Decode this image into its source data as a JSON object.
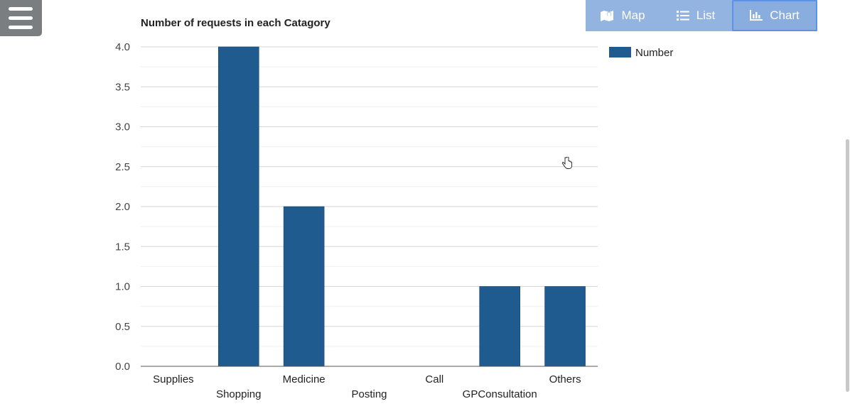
{
  "menu": {
    "icon": "hamburger-menu-icon"
  },
  "view_toggle": {
    "items": [
      {
        "label": "Map",
        "icon": "map-icon",
        "active": false
      },
      {
        "label": "List",
        "icon": "list-icon",
        "active": false
      },
      {
        "label": "Chart",
        "icon": "bar-chart-icon",
        "active": true
      }
    ]
  },
  "chart_data": {
    "type": "bar",
    "title": "Number of requests in each Catagory",
    "xlabel": "",
    "ylabel": "",
    "categories": [
      "Supplies",
      "Shopping",
      "Medicine",
      "Posting",
      "Call",
      "GPConsultation",
      "Others"
    ],
    "series": [
      {
        "name": "Number",
        "values": [
          0,
          4,
          2,
          0,
          0,
          1,
          1
        ],
        "color": "#1f5b8e"
      }
    ],
    "ylim": [
      0,
      4
    ],
    "yticks": [
      "0.0",
      "0.5",
      "1.0",
      "1.5",
      "2.0",
      "2.5",
      "3.0",
      "3.5",
      "4.0"
    ],
    "grid": true,
    "legend_position": "top-right"
  }
}
